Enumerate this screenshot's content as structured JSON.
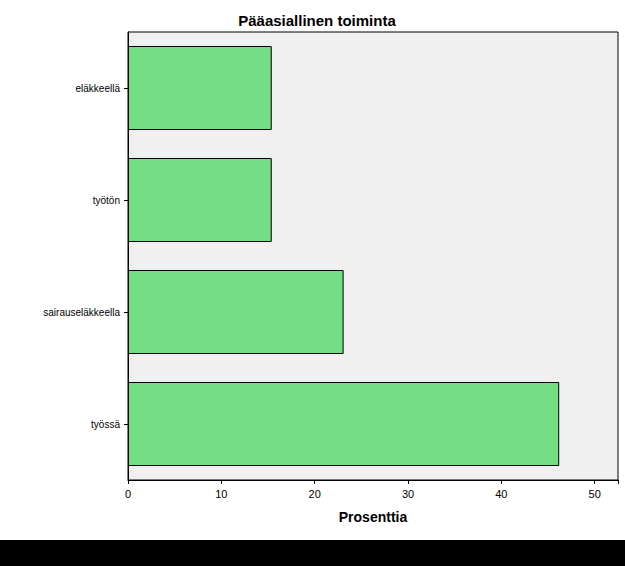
{
  "chart_data": {
    "type": "bar",
    "orientation": "horizontal",
    "title": "Pääasiallinen toiminta",
    "x_label": "Prosenttia",
    "categories": [
      "työssä",
      "sairauseläkkeella",
      "työtön",
      "eläkkeellä"
    ],
    "values": [
      46.2,
      23.1,
      15.4,
      15.4
    ],
    "color": "#73de84",
    "xlim": [
      0,
      52.5
    ],
    "xticks": [
      0,
      10,
      20,
      30,
      40,
      50
    ],
    "grid": false
  }
}
